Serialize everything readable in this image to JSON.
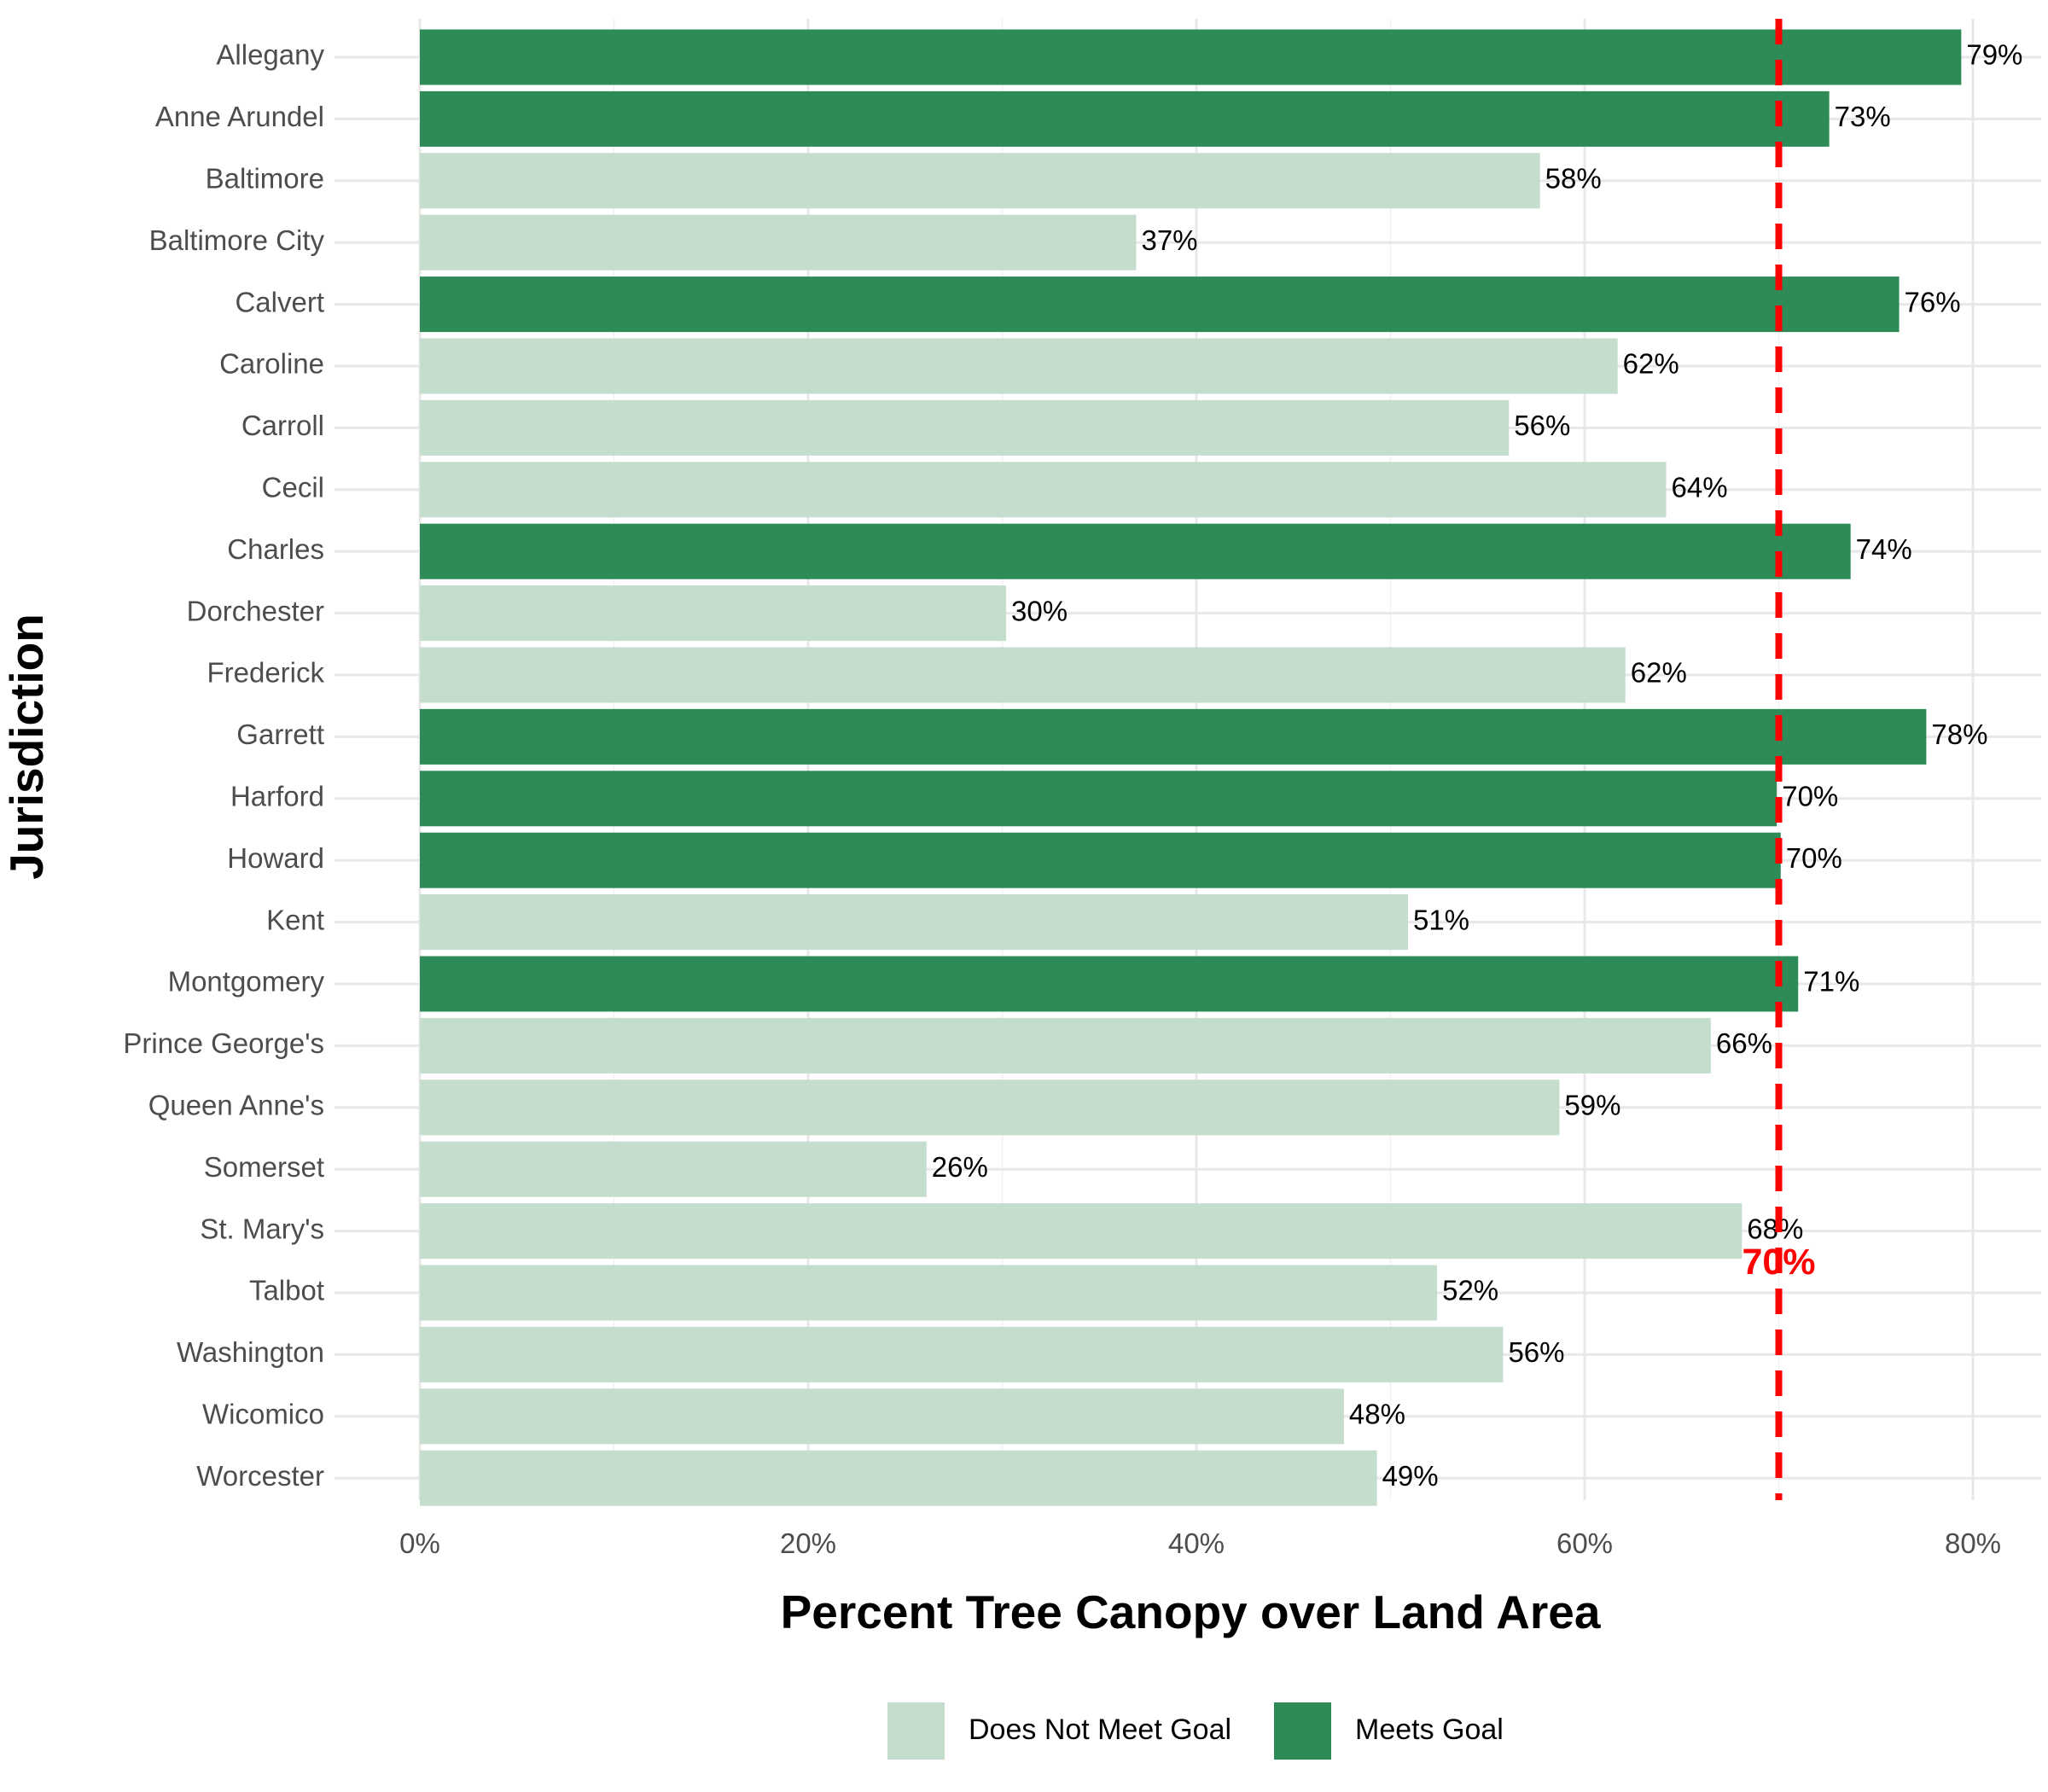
{
  "chart_data": {
    "type": "bar",
    "orientation": "horizontal",
    "title": "",
    "xlabel": "Percent Tree Canopy over Land Area",
    "ylabel": "Jurisdiction",
    "xlim": [
      0,
      83
    ],
    "x_ticks": [
      0,
      20,
      40,
      60,
      80
    ],
    "x_tick_labels": [
      "0%",
      "20%",
      "40%",
      "60%",
      "80%"
    ],
    "grid": true,
    "legend_position": "bottom",
    "goal": {
      "value": 70,
      "label": "70%",
      "color": "#ff0000",
      "style": "dashed"
    },
    "categories": [
      "Allegany",
      "Anne Arundel",
      "Baltimore",
      "Baltimore City",
      "Calvert",
      "Caroline",
      "Carroll",
      "Cecil",
      "Charles",
      "Dorchester",
      "Frederick",
      "Garrett",
      "Harford",
      "Howard",
      "Kent",
      "Montgomery",
      "Prince George's",
      "Queen Anne's",
      "Somerset",
      "St. Mary's",
      "Talbot",
      "Washington",
      "Wicomico",
      "Worcester"
    ],
    "values": [
      79.4,
      72.6,
      57.7,
      36.9,
      76.2,
      61.7,
      56.1,
      64.2,
      73.7,
      30.2,
      62.1,
      77.6,
      69.9,
      70.1,
      50.9,
      71.0,
      66.5,
      58.7,
      26.1,
      68.1,
      52.4,
      55.8,
      47.6,
      49.3
    ],
    "value_labels": [
      "79%",
      "73%",
      "58%",
      "37%",
      "76%",
      "62%",
      "56%",
      "64%",
      "74%",
      "30%",
      "62%",
      "78%",
      "70%",
      "70%",
      "51%",
      "71%",
      "66%",
      "59%",
      "26%",
      "68%",
      "52%",
      "56%",
      "48%",
      "49%"
    ],
    "groups": [
      "Meets Goal",
      "Meets Goal",
      "Does Not Meet Goal",
      "Does Not Meet Goal",
      "Meets Goal",
      "Does Not Meet Goal",
      "Does Not Meet Goal",
      "Does Not Meet Goal",
      "Meets Goal",
      "Does Not Meet Goal",
      "Does Not Meet Goal",
      "Meets Goal",
      "Meets Goal",
      "Meets Goal",
      "Does Not Meet Goal",
      "Meets Goal",
      "Does Not Meet Goal",
      "Does Not Meet Goal",
      "Does Not Meet Goal",
      "Does Not Meet Goal",
      "Does Not Meet Goal",
      "Does Not Meet Goal",
      "Does Not Meet Goal",
      "Does Not Meet Goal"
    ],
    "legend": [
      {
        "name": "Does Not Meet Goal",
        "color": "#c4ddcc"
      },
      {
        "name": "Meets Goal",
        "color": "#2e8b57"
      }
    ]
  }
}
